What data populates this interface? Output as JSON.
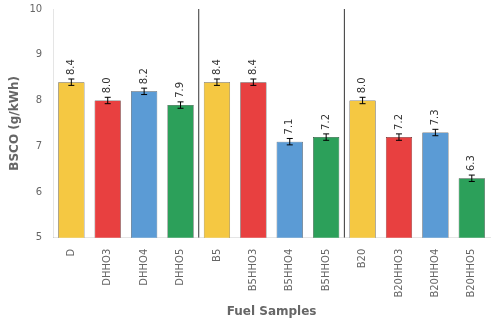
{
  "chart_data": {
    "type": "bar",
    "xlabel": "Fuel Samples",
    "ylabel": "BSCO (g/kWh)",
    "categories": [
      "D",
      "DHHO3",
      "DHHO4",
      "DHHO5",
      "B5",
      "B5HHO3",
      "B5HHO4",
      "B5HHO5",
      "B20",
      "B20HHO3",
      "B20HHO4",
      "B20HHO5"
    ],
    "values": [
      8.4,
      8.0,
      8.2,
      7.9,
      8.4,
      8.4,
      7.1,
      7.2,
      8.0,
      7.2,
      7.3,
      6.3
    ],
    "value_labels": [
      "8.4",
      "8.0",
      "8.2",
      "7.9",
      "8.4",
      "8.4",
      "7.1",
      "7.2",
      "8.0",
      "7.2",
      "7.3",
      "6.3"
    ],
    "errors": [
      0.07,
      0.07,
      0.07,
      0.07,
      0.07,
      0.07,
      0.07,
      0.07,
      0.07,
      0.07,
      0.07,
      0.07
    ],
    "colors": [
      "#F5C842",
      "#E84040",
      "#5B9BD5",
      "#2CA05A",
      "#F5C842",
      "#E84040",
      "#5B9BD5",
      "#2CA05A",
      "#F5C842",
      "#E84040",
      "#5B9BD5",
      "#2CA05A"
    ],
    "ylim": [
      5,
      10
    ],
    "yticks": [
      5,
      6,
      7,
      8,
      9,
      10
    ],
    "grid": false,
    "data_labels": true
  }
}
